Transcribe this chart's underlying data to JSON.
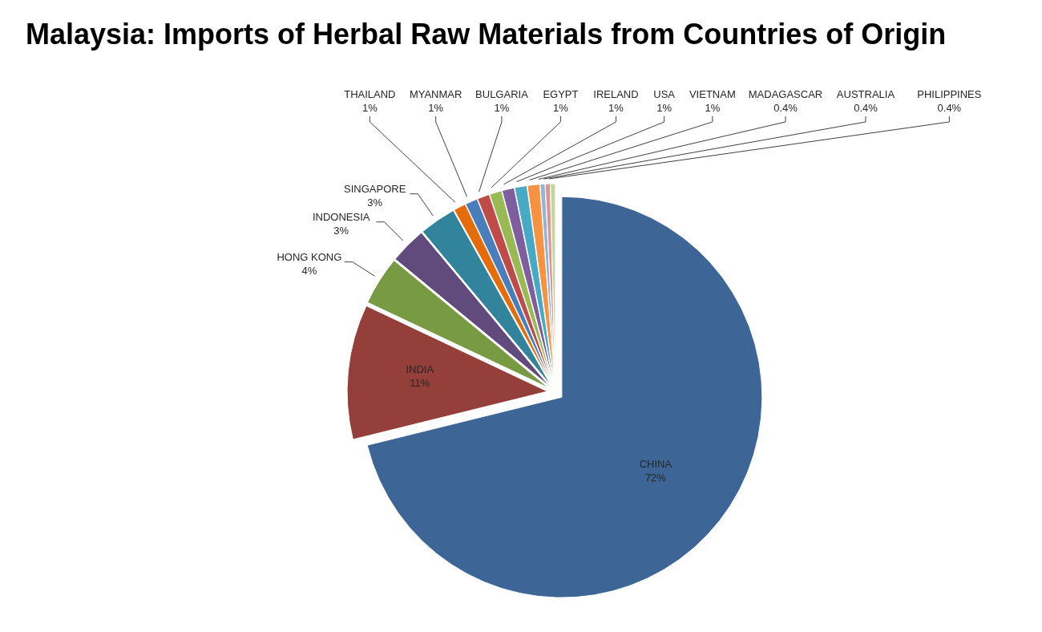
{
  "chart_data": {
    "type": "pie",
    "title": "Malaysia: Imports of Herbal Raw Materials from Countries of Origin",
    "categories": [
      "CHINA",
      "INDIA",
      "HONG KONG",
      "INDONESIA",
      "SINGAPORE",
      "THAILAND",
      "MYANMAR",
      "BULGARIA",
      "EGYPT",
      "IRELAND",
      "USA",
      "VIETNAM",
      "MADAGASCAR",
      "AUSTRALIA",
      "PHILIPPINES"
    ],
    "values": [
      72,
      11,
      4,
      3,
      3,
      1,
      1,
      1,
      1,
      1,
      1,
      1,
      0.4,
      0.4,
      0.4
    ],
    "value_labels": [
      "72%",
      "11%",
      "4%",
      "3%",
      "3%",
      "1%",
      "1%",
      "1%",
      "1%",
      "1%",
      "1%",
      "1%",
      "0.4%",
      "0.4%",
      "0.4%"
    ],
    "colors": [
      "#3d6696",
      "#953f3b",
      "#779a42",
      "#614b7d",
      "#31849b",
      "#e46c0a",
      "#4a7ebb",
      "#be4b48",
      "#98b954",
      "#7d5fa0",
      "#46aac5",
      "#f69240",
      "#95b3d7",
      "#d99694",
      "#c3d69b"
    ]
  }
}
